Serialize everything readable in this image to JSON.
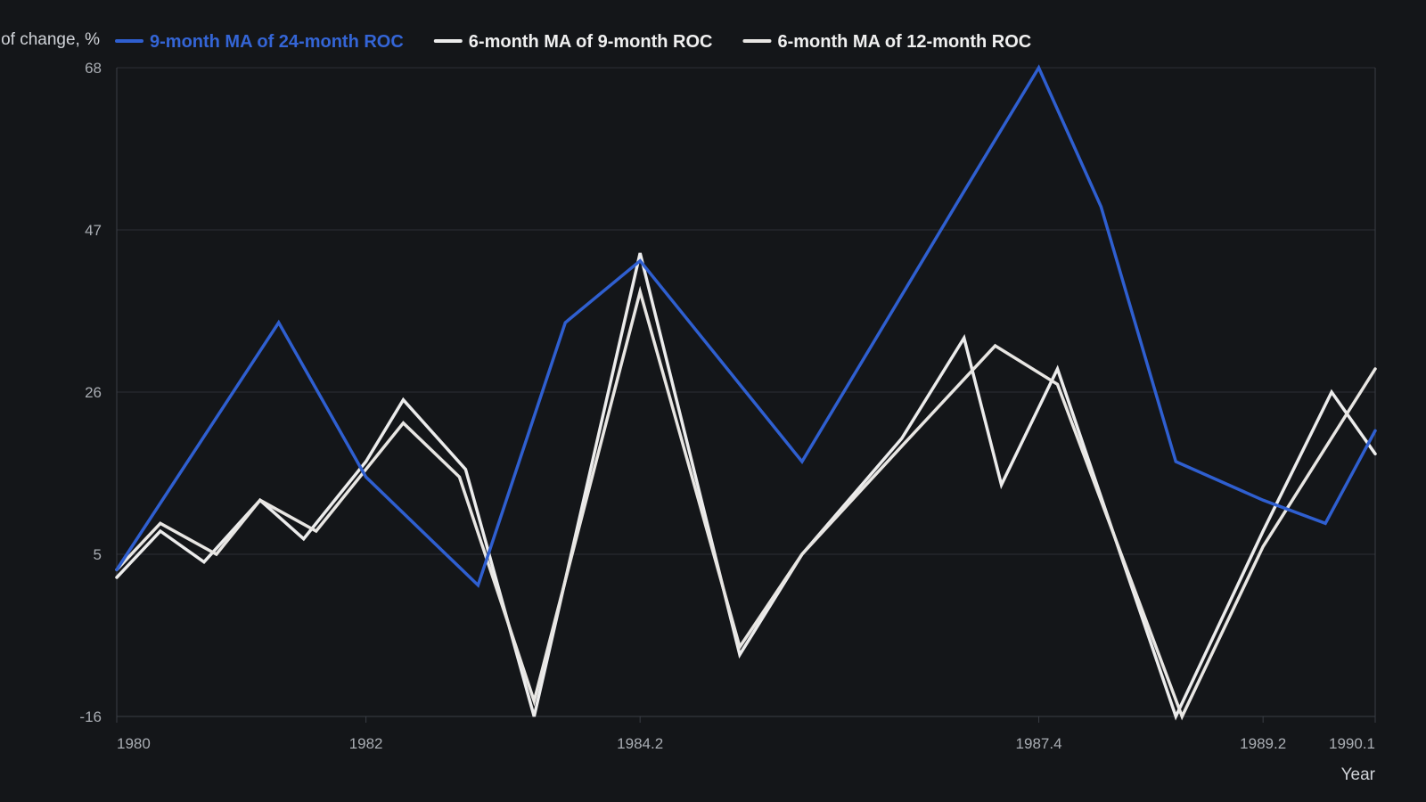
{
  "chart_data": {
    "type": "line",
    "title": "",
    "xlabel": "Year",
    "ylabel": "of change, %",
    "xlim": [
      1980,
      1990.1
    ],
    "ylim": [
      -16,
      68
    ],
    "x_ticks": [
      1980,
      1982,
      1984.2,
      1987.4,
      1989.2,
      1990.1
    ],
    "x_tick_labels": [
      "1980",
      "1982",
      "1984.2",
      "1987.4",
      "1989.2",
      "1990.1"
    ],
    "y_ticks": [
      -16,
      5,
      26,
      47,
      68
    ],
    "y_tick_labels": [
      "-16",
      "5",
      "26",
      "47",
      "68"
    ],
    "grid": true,
    "legend_position": "top",
    "series": [
      {
        "name": "9-month MA of 24-month ROC",
        "color": "#2f5fd0",
        "points": [
          [
            1980,
            3
          ],
          [
            1981.3,
            35
          ],
          [
            1982,
            15
          ],
          [
            1982.9,
            1
          ],
          [
            1983.6,
            35
          ],
          [
            1984.2,
            43
          ],
          [
            1985.5,
            17
          ],
          [
            1986.8,
            52
          ],
          [
            1987.4,
            68
          ],
          [
            1987.9,
            50
          ],
          [
            1988.5,
            17
          ],
          [
            1989.2,
            12
          ],
          [
            1989.7,
            9
          ],
          [
            1990.1,
            21
          ]
        ]
      },
      {
        "name": "6-month MA of 9-month ROC",
        "color": "#ececec",
        "points": [
          [
            1980,
            2
          ],
          [
            1980.35,
            8
          ],
          [
            1980.7,
            4
          ],
          [
            1981.15,
            12
          ],
          [
            1981.5,
            7
          ],
          [
            1982,
            17
          ],
          [
            1982.3,
            25
          ],
          [
            1982.8,
            16
          ],
          [
            1983.35,
            -16
          ],
          [
            1984.2,
            44
          ],
          [
            1985,
            -8
          ],
          [
            1985.5,
            5
          ],
          [
            1986.3,
            20
          ],
          [
            1986.8,
            33
          ],
          [
            1987.1,
            14
          ],
          [
            1987.55,
            29
          ],
          [
            1988.5,
            -16
          ],
          [
            1989.2,
            8
          ],
          [
            1989.75,
            26
          ],
          [
            1990.1,
            18
          ]
        ]
      },
      {
        "name": "6-month MA of 12-month ROC",
        "color": "#e8e6e3",
        "points": [
          [
            1980,
            3
          ],
          [
            1980.35,
            9
          ],
          [
            1980.8,
            5
          ],
          [
            1981.15,
            12
          ],
          [
            1981.6,
            8
          ],
          [
            1982,
            16
          ],
          [
            1982.3,
            22
          ],
          [
            1982.75,
            15
          ],
          [
            1983.35,
            -14
          ],
          [
            1984.2,
            39
          ],
          [
            1985,
            -7
          ],
          [
            1985.5,
            5
          ],
          [
            1986.3,
            19
          ],
          [
            1987.05,
            32
          ],
          [
            1987.55,
            27
          ],
          [
            1988.55,
            -16
          ],
          [
            1989.2,
            6
          ],
          [
            1990.1,
            29
          ]
        ]
      }
    ]
  }
}
